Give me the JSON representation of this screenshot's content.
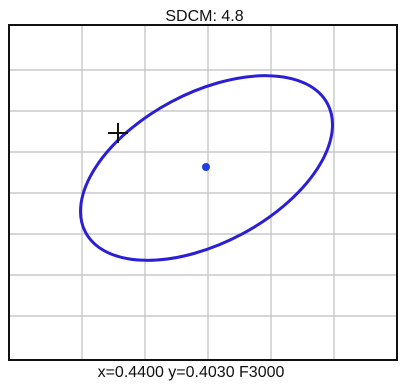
{
  "title": "SDCM: 4.8",
  "status_readout": "x=0.4400 y=0.4030 F3000",
  "colors": {
    "ellipse": "#2a1fd6",
    "center_dot": "#1f3fe0",
    "grid": "#c8c8c8",
    "frame": "#111111",
    "cursor": "#111111"
  },
  "chart_data": {
    "type": "scatter",
    "title": "SDCM: 4.8",
    "xlabel": "",
    "ylabel": "",
    "grid": true,
    "series": [
      {
        "type": "ellipse",
        "center": [
          0.44,
          0.403
        ],
        "sdcm_steps": 4.8
      },
      {
        "type": "point",
        "x": [
          0.44
        ],
        "y": [
          0.403
        ]
      }
    ],
    "annotations": [
      {
        "type": "crosshair-cursor"
      }
    ]
  }
}
